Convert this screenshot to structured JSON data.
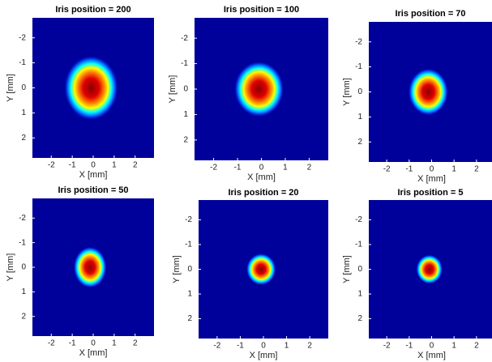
{
  "chart_data": [
    {
      "type": "heatmap",
      "title": "Iris position = 200",
      "xlabel": "X [mm]",
      "ylabel": "Y [mm]",
      "xlim": [
        -2.9,
        2.9
      ],
      "ylim": [
        -2.8,
        2.8
      ],
      "yreverse": true,
      "xticks": [
        -2,
        -1,
        0,
        1,
        2
      ],
      "yticks": [
        -2,
        -1,
        0,
        1,
        2
      ],
      "background": "#00009a",
      "beam": {
        "x": -0.1,
        "y": 0,
        "rx": 1.3,
        "ry": 1.3
      }
    },
    {
      "type": "heatmap",
      "title": "Iris position = 100",
      "xlabel": "X [mm]",
      "ylabel": "Y [mm]",
      "xlim": [
        -2.8,
        2.8
      ],
      "ylim": [
        -2.8,
        2.8
      ],
      "yreverse": true,
      "xticks": [
        -2,
        -1,
        0,
        1,
        2
      ],
      "yticks": [
        -2,
        -1,
        0,
        1,
        2
      ],
      "background": "#00009a",
      "beam": {
        "x": -0.1,
        "y": 0,
        "rx": 1.05,
        "ry": 1.1
      }
    },
    {
      "type": "heatmap",
      "title": "Iris position = 70",
      "xlabel": "X [mm]",
      "ylabel": "Y [mm]",
      "xlim": [
        -2.8,
        2.8
      ],
      "ylim": [
        -2.8,
        2.8
      ],
      "yreverse": true,
      "xticks": [
        -2,
        -1,
        0,
        1,
        2
      ],
      "yticks": [
        -2,
        -1,
        0,
        1,
        2
      ],
      "background": "#00009a",
      "beam": {
        "x": -0.15,
        "y": 0,
        "rx": 0.9,
        "ry": 0.95
      }
    },
    {
      "type": "heatmap",
      "title": "Iris position = 50",
      "xlabel": "X [mm]",
      "ylabel": "Y [mm]",
      "xlim": [
        -2.9,
        2.9
      ],
      "ylim": [
        -2.8,
        2.8
      ],
      "yreverse": true,
      "xticks": [
        -2,
        -1,
        0,
        1,
        2
      ],
      "yticks": [
        -2,
        -1,
        0,
        1,
        2
      ],
      "background": "#00009a",
      "beam": {
        "x": -0.15,
        "y": 0,
        "rx": 0.8,
        "ry": 0.85
      }
    },
    {
      "type": "heatmap",
      "title": "Iris position = 20",
      "xlabel": "X [mm]",
      "ylabel": "Y [mm]",
      "xlim": [
        -2.8,
        2.8
      ],
      "ylim": [
        -2.8,
        2.8
      ],
      "yreverse": true,
      "xticks": [
        -2,
        -1,
        0,
        1,
        2
      ],
      "yticks": [
        -2,
        -1,
        0,
        1,
        2
      ],
      "background": "#00009a",
      "beam": {
        "x": -0.1,
        "y": 0,
        "rx": 0.65,
        "ry": 0.65
      }
    },
    {
      "type": "heatmap",
      "title": "Iris position = 5",
      "xlabel": "X [mm]",
      "ylabel": "Y [mm]",
      "xlim": [
        -2.8,
        2.8
      ],
      "ylim": [
        -2.8,
        2.8
      ],
      "yreverse": true,
      "xticks": [
        -2,
        -1,
        0,
        1,
        2
      ],
      "yticks": [
        -2,
        -1,
        0,
        1,
        2
      ],
      "background": "#00009a",
      "beam": {
        "x": -0.1,
        "y": 0,
        "rx": 0.6,
        "ry": 0.6
      }
    }
  ]
}
